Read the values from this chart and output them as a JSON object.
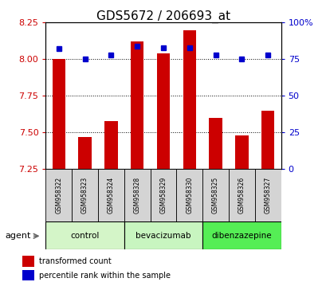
{
  "title": "GDS5672 / 206693_at",
  "samples": [
    "GSM958322",
    "GSM958323",
    "GSM958324",
    "GSM958328",
    "GSM958329",
    "GSM958330",
    "GSM958325",
    "GSM958326",
    "GSM958327"
  ],
  "bar_values": [
    8.0,
    7.47,
    7.58,
    8.12,
    8.04,
    8.2,
    7.6,
    7.48,
    7.65
  ],
  "percentile_values": [
    82,
    75,
    78,
    84,
    83,
    83,
    78,
    75,
    78
  ],
  "groups": [
    {
      "label": "control",
      "indices": [
        0,
        1,
        2
      ],
      "color": "#d4f5c8"
    },
    {
      "label": "bevacizumab",
      "indices": [
        3,
        4,
        5
      ],
      "color": "#c8f5c0"
    },
    {
      "label": "dibenzazepine",
      "indices": [
        6,
        7,
        8
      ],
      "color": "#55ee55"
    }
  ],
  "ylim_left": [
    7.25,
    8.25
  ],
  "ylim_right": [
    0,
    100
  ],
  "yticks_left": [
    7.25,
    7.5,
    7.75,
    8.0,
    8.25
  ],
  "yticks_right": [
    0,
    25,
    50,
    75,
    100
  ],
  "bar_color": "#cc0000",
  "dot_color": "#0000cc",
  "bg_color": "#ffffff",
  "plot_bg": "#ffffff",
  "grid_color": "#000000",
  "title_fontsize": 11,
  "tick_fontsize": 8,
  "agent_label": "agent",
  "legend_bar": "transformed count",
  "legend_dot": "percentile rank within the sample"
}
